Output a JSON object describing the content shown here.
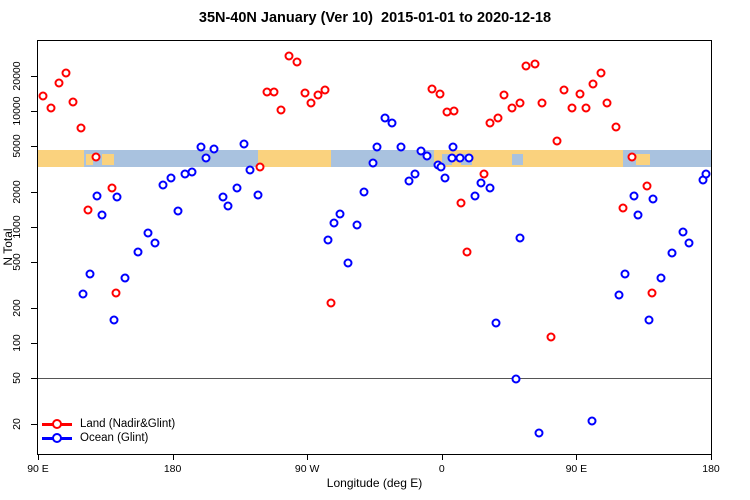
{
  "title": "35N-40N January (Ver 10)  2015-01-01 to 2020-12-18",
  "chart_data": {
    "type": "scatter",
    "title": "35N-40N January (Ver 10)  2015-01-01 to 2020-12-18",
    "xlabel": "Longitude (deg E)",
    "ylabel": "N Total",
    "x_axis": {
      "note": "longitude axis runs eastward and wraps; positions below are degrees east of the left edge, which is 90E",
      "span_deg": 450,
      "tick_positions_deg": [
        0,
        90,
        180,
        270,
        360,
        450
      ],
      "tick_labels": [
        "90 E",
        "180",
        "90 W",
        "0",
        "90 E",
        "180"
      ]
    },
    "y_axis": {
      "scale": "log",
      "tick_values": [
        20,
        50,
        100,
        200,
        500,
        1000,
        2000,
        5000,
        10000,
        20000
      ],
      "range": [
        11,
        40000
      ]
    },
    "reference_line_y": 50,
    "legend": {
      "position": "bottom-left",
      "entries": [
        {
          "label": "Land (Nadir&Glint)",
          "color": "#FF0000"
        },
        {
          "label": "Ocean (Glint)",
          "color": "#0000FF"
        }
      ]
    },
    "surface_band": {
      "description": "land/ocean surface-type strip drawn across the plot",
      "n_range": [
        3300,
        4600
      ],
      "land_color": "#FAD27E",
      "ocean_color": "#A9C2DF",
      "segments": [
        {
          "from": 0,
          "to": 31,
          "type": "land"
        },
        {
          "from": 31,
          "to": 147,
          "type": "ocean"
        },
        {
          "from": 147,
          "to": 196,
          "type": "land"
        },
        {
          "from": 196,
          "to": 265,
          "type": "ocean"
        },
        {
          "from": 265,
          "to": 391,
          "type": "land"
        },
        {
          "from": 391,
          "to": 450,
          "type": "ocean"
        }
      ],
      "coast_patches": [
        {
          "from": 32,
          "to": 37,
          "type": "land"
        },
        {
          "from": 43,
          "to": 51,
          "type": "land"
        },
        {
          "from": 270,
          "to": 277,
          "type": "ocean"
        },
        {
          "from": 283,
          "to": 290,
          "type": "ocean"
        },
        {
          "from": 317,
          "to": 324,
          "type": "ocean"
        },
        {
          "from": 400,
          "to": 409,
          "type": "land"
        }
      ]
    },
    "series": [
      {
        "name": "Land (Nadir&Glint)",
        "color": "#FF0000",
        "points": [
          [
            18.7,
            21200
          ],
          [
            14,
            17400
          ],
          [
            3.3,
            13500
          ],
          [
            23.3,
            12000
          ],
          [
            8.7,
            10600
          ],
          [
            28.7,
            7150
          ],
          [
            38.7,
            4030
          ],
          [
            49.3,
            2140
          ],
          [
            33.3,
            1390
          ],
          [
            168,
            29800
          ],
          [
            173.3,
            26400
          ],
          [
            153.3,
            14600
          ],
          [
            158,
            14600
          ],
          [
            178.7,
            14300
          ],
          [
            192,
            15200
          ],
          [
            187.3,
            13700
          ],
          [
            182.7,
            11700
          ],
          [
            162.7,
            10200
          ],
          [
            148.7,
            3310
          ],
          [
            326,
            24400
          ],
          [
            332,
            25400
          ],
          [
            263.3,
            15500
          ],
          [
            268.7,
            14000
          ],
          [
            273.3,
            9820
          ],
          [
            278,
            10000
          ],
          [
            311.3,
            13700
          ],
          [
            322,
            11700
          ],
          [
            316.7,
            10600
          ],
          [
            302,
            7890
          ],
          [
            307.3,
            8710
          ],
          [
            298,
            2880
          ],
          [
            282.7,
            1590
          ],
          [
            286.7,
            604
          ],
          [
            376.7,
            21200
          ],
          [
            371.3,
            17100
          ],
          [
            352,
            15200
          ],
          [
            362.7,
            14000
          ],
          [
            336.7,
            11700
          ],
          [
            357.3,
            10600
          ],
          [
            366.7,
            10600
          ],
          [
            380.7,
            11700
          ],
          [
            386.7,
            7290
          ],
          [
            347.3,
            5530
          ],
          [
            397.3,
            4030
          ],
          [
            407.3,
            2230
          ],
          [
            391.3,
            1440
          ],
          [
            52,
            268
          ],
          [
            196,
            220
          ],
          [
            410.7,
            268
          ],
          [
            343.3,
            112
          ]
        ]
      },
      {
        "name": "Ocean (Glint)",
        "color": "#0000FF",
        "points": [
          [
            108.7,
            4920
          ],
          [
            112,
            3950
          ],
          [
            83.3,
            2280
          ],
          [
            88.7,
            2660
          ],
          [
            98,
            2880
          ],
          [
            102.7,
            2940
          ],
          [
            39.3,
            1830
          ],
          [
            52.7,
            1800
          ],
          [
            42.7,
            1260
          ],
          [
            93.3,
            1360
          ],
          [
            73.3,
            880
          ],
          [
            78,
            721
          ],
          [
            34.7,
            391
          ],
          [
            58,
            361
          ],
          [
            30,
            263
          ],
          [
            50.7,
            157
          ],
          [
            66.7,
            604
          ],
          [
            118,
            4720
          ],
          [
            138,
            5210
          ],
          [
            142,
            3060
          ],
          [
            133.3,
            2140
          ],
          [
            124,
            1800
          ],
          [
            127.3,
            1500
          ],
          [
            147.3,
            1870
          ],
          [
            202,
            1280
          ],
          [
            198,
            1070
          ],
          [
            213.3,
            1030
          ],
          [
            194,
            766
          ],
          [
            218,
            1980
          ],
          [
            207.3,
            485
          ],
          [
            232,
            8710
          ],
          [
            236.7,
            7890
          ],
          [
            224,
            3520
          ],
          [
            226.7,
            4920
          ],
          [
            242.7,
            4920
          ],
          [
            256,
            4540
          ],
          [
            260,
            4110
          ],
          [
            277.3,
            4920
          ],
          [
            276.7,
            3950
          ],
          [
            282,
            3950
          ],
          [
            288,
            3950
          ],
          [
            267.3,
            3440
          ],
          [
            269.3,
            3250
          ],
          [
            252,
            2830
          ],
          [
            248,
            2460
          ],
          [
            272,
            2660
          ],
          [
            296,
            2370
          ],
          [
            302,
            2180
          ],
          [
            292,
            1830
          ],
          [
            322,
            796
          ],
          [
            306,
            148
          ],
          [
            319.3,
            49
          ],
          [
            444.7,
            2510
          ],
          [
            446.7,
            2880
          ],
          [
            411.3,
            1730
          ],
          [
            398.7,
            1830
          ],
          [
            401.3,
            1260
          ],
          [
            431.3,
            897
          ],
          [
            435.3,
            721
          ],
          [
            424,
            592
          ],
          [
            392.7,
            391
          ],
          [
            416.7,
            361
          ],
          [
            388.7,
            258
          ],
          [
            408.7,
            157
          ],
          [
            370.7,
            21
          ],
          [
            334.7,
            16.6
          ]
        ]
      }
    ]
  }
}
